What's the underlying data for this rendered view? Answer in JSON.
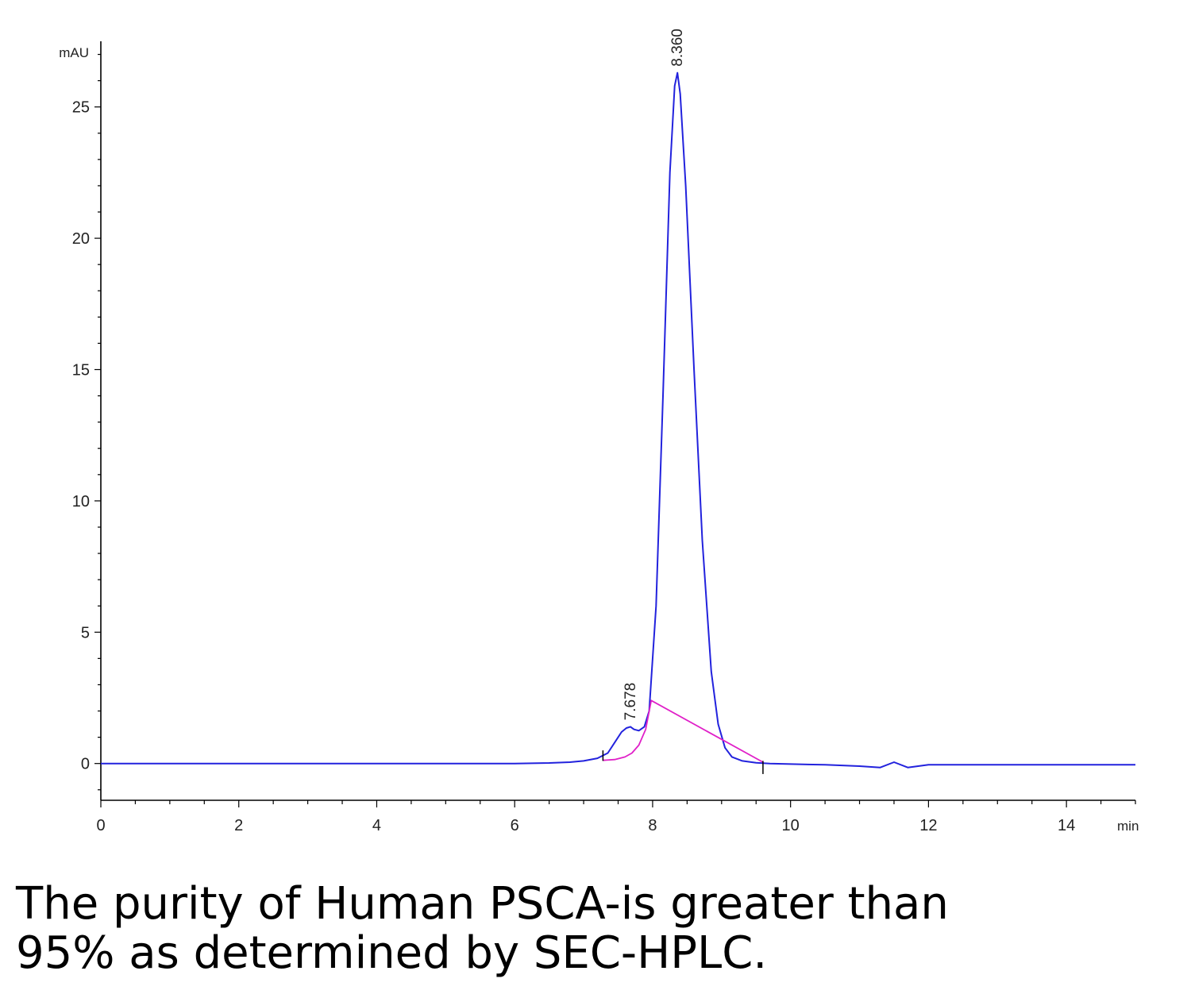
{
  "chart_data": {
    "type": "line",
    "title": "",
    "xlabel": "min",
    "ylabel": "mAU",
    "xlim": [
      0,
      15
    ],
    "ylim": [
      -1.4,
      27.5
    ],
    "x_ticks": [
      0,
      2,
      4,
      6,
      8,
      10,
      12,
      14
    ],
    "y_ticks": [
      0,
      5,
      10,
      15,
      20,
      25
    ],
    "grid": false,
    "series": [
      {
        "color": "#2222dd",
        "x": [
          0,
          0.8,
          1.0,
          2.0,
          3.0,
          4.0,
          5.0,
          5.6,
          6.0,
          6.5,
          6.8,
          7.0,
          7.2,
          7.35,
          7.45,
          7.55,
          7.62,
          7.678,
          7.73,
          7.8,
          7.88,
          7.95,
          8.05,
          8.15,
          8.25,
          8.32,
          8.36,
          8.4,
          8.48,
          8.6,
          8.72,
          8.85,
          8.95,
          9.05,
          9.15,
          9.3,
          9.5,
          9.7,
          10.0,
          10.5,
          11.0,
          11.3,
          11.5,
          11.7,
          12.0,
          12.5,
          13.0,
          14.0,
          15.0
        ],
        "y": [
          0,
          0,
          0,
          0,
          0,
          0,
          0,
          0,
          0,
          0.02,
          0.05,
          0.1,
          0.2,
          0.4,
          0.8,
          1.2,
          1.35,
          1.4,
          1.3,
          1.25,
          1.4,
          2.0,
          6.0,
          14.0,
          22.5,
          25.8,
          26.3,
          25.5,
          22.0,
          15.0,
          8.5,
          3.5,
          1.5,
          0.6,
          0.25,
          0.1,
          0.03,
          0.0,
          -0.02,
          -0.05,
          -0.1,
          -0.15,
          0.05,
          -0.15,
          -0.05,
          -0.05,
          -0.05,
          -0.05,
          -0.05
        ]
      },
      {
        "color": "#e020c8",
        "x": [
          7.28,
          7.45,
          7.6,
          7.7,
          7.8,
          7.9,
          7.98,
          9.6
        ],
        "y": [
          0.12,
          0.15,
          0.25,
          0.4,
          0.7,
          1.3,
          2.4,
          0.05
        ]
      }
    ],
    "peak_labels": [
      {
        "x": 7.678,
        "text": "7.678"
      },
      {
        "x": 8.36,
        "text": "8.360"
      }
    ]
  },
  "caption": {
    "line1": "The purity of Human PSCA-is greater than",
    "line2": "95% as determined by SEC-HPLC."
  }
}
